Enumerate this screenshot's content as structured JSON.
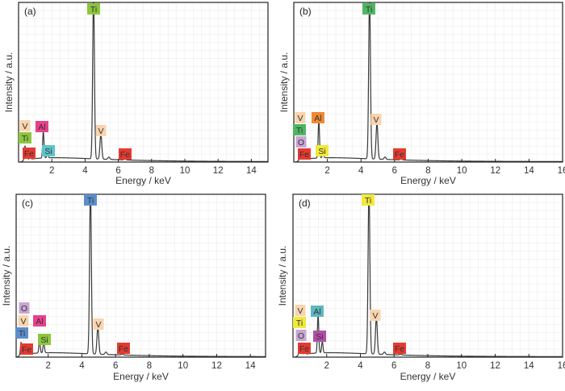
{
  "chart_data": [
    {
      "type": "line",
      "panel": "(a)",
      "xlabel": "Energy / keV",
      "ylabel": "Intensity / a.u.",
      "xlim": [
        0,
        15
      ],
      "ylim": [
        0,
        100
      ],
      "xticks": [
        "2",
        "4",
        "6",
        "8",
        "10",
        "12",
        "14"
      ],
      "grid": true,
      "peaks": [
        {
          "energy": 0.39,
          "intensity": 9
        },
        {
          "energy": 0.51,
          "intensity": 5
        },
        {
          "energy": 0.7,
          "intensity": 2
        },
        {
          "energy": 1.49,
          "intensity": 17
        },
        {
          "energy": 1.74,
          "intensity": 3
        },
        {
          "energy": 4.51,
          "intensity": 105
        },
        {
          "energy": 4.95,
          "intensity": 16
        },
        {
          "energy": 5.43,
          "intensity": 1.5
        },
        {
          "energy": 6.4,
          "intensity": 0.6
        }
      ],
      "annotations": [
        {
          "text": "Ti",
          "color": "#8cc63e"
        },
        {
          "text": "V",
          "color": "#f9d4ae"
        },
        {
          "text": "Ti",
          "color": "#8cc63e"
        },
        {
          "text": "Fe",
          "color": "#e53a30"
        },
        {
          "text": "Al",
          "color": "#e8408c"
        },
        {
          "text": "Si",
          "color": "#5cc5cb"
        },
        {
          "text": "V",
          "color": "#f9d4ae"
        },
        {
          "text": "Fe",
          "color": "#e53a30"
        }
      ]
    },
    {
      "type": "line",
      "panel": "(b)",
      "xlabel": "Energy / keV",
      "ylabel": "Intensity / a.u.",
      "xlim": [
        0,
        16
      ],
      "ylim": [
        0,
        100
      ],
      "xticks": [
        "2",
        "4",
        "6",
        "8",
        "10",
        "12",
        "14",
        "16"
      ],
      "grid": true,
      "peaks": [
        {
          "energy": 0.39,
          "intensity": 7
        },
        {
          "energy": 0.52,
          "intensity": 6
        },
        {
          "energy": 0.7,
          "intensity": 2
        },
        {
          "energy": 1.49,
          "intensity": 24
        },
        {
          "energy": 1.74,
          "intensity": 3
        },
        {
          "energy": 4.51,
          "intensity": 105
        },
        {
          "energy": 4.95,
          "intensity": 23
        },
        {
          "energy": 5.43,
          "intensity": 1.5
        },
        {
          "energy": 6.4,
          "intensity": 0.6
        }
      ],
      "annotations": [
        {
          "text": "Ti",
          "color": "#4fb563"
        },
        {
          "text": "V",
          "color": "#f9d4ae"
        },
        {
          "text": "Ti",
          "color": "#4fb563"
        },
        {
          "text": "O",
          "color": "#c9a5d3"
        },
        {
          "text": "Fe",
          "color": "#e53a30"
        },
        {
          "text": "Al",
          "color": "#f08a33"
        },
        {
          "text": "Si",
          "color": "#f1e93c"
        },
        {
          "text": "V",
          "color": "#f9d4ae"
        },
        {
          "text": "Fe",
          "color": "#e53a30"
        }
      ]
    },
    {
      "type": "line",
      "panel": "(c)",
      "xlabel": "Energy / keV",
      "ylabel": "Intensity / a.u.",
      "xlim": [
        0.1,
        14.9
      ],
      "ylim": [
        0,
        100
      ],
      "xticks": [
        "2",
        "4",
        "6",
        "8",
        "10",
        "12",
        "14"
      ],
      "grid": true,
      "peaks": [
        {
          "energy": 0.39,
          "intensity": 8
        },
        {
          "energy": 0.52,
          "intensity": 5
        },
        {
          "energy": 0.7,
          "intensity": 2
        },
        {
          "energy": 1.49,
          "intensity": 8
        },
        {
          "energy": 1.74,
          "intensity": 7
        },
        {
          "energy": 4.51,
          "intensity": 105
        },
        {
          "energy": 4.95,
          "intensity": 17
        },
        {
          "energy": 5.43,
          "intensity": 1.5
        },
        {
          "energy": 6.4,
          "intensity": 0.6
        }
      ],
      "annotations": [
        {
          "text": "Ti",
          "color": "#5b8ecb"
        },
        {
          "text": "O",
          "color": "#c9a5d3"
        },
        {
          "text": "V",
          "color": "#f9d4ae"
        },
        {
          "text": "Ti",
          "color": "#5b8ecb"
        },
        {
          "text": "Fe",
          "color": "#e53a30"
        },
        {
          "text": "Al",
          "color": "#e8408c"
        },
        {
          "text": "Si",
          "color": "#8cc63e"
        },
        {
          "text": "V",
          "color": "#f9d4ae"
        },
        {
          "text": "Fe",
          "color": "#e53a30"
        }
      ]
    },
    {
      "type": "line",
      "panel": "(d)",
      "xlabel": "Energy / keV",
      "ylabel": "Intensity / a.u.",
      "xlim": [
        0,
        16
      ],
      "ylim": [
        0,
        100
      ],
      "xticks": [
        "2",
        "4",
        "6",
        "8",
        "10",
        "12",
        "14",
        "16"
      ],
      "grid": true,
      "peaks": [
        {
          "energy": 0.39,
          "intensity": 7
        },
        {
          "energy": 0.52,
          "intensity": 6
        },
        {
          "energy": 0.7,
          "intensity": 2
        },
        {
          "energy": 1.49,
          "intensity": 24
        },
        {
          "energy": 1.74,
          "intensity": 7
        },
        {
          "energy": 4.51,
          "intensity": 105
        },
        {
          "energy": 4.95,
          "intensity": 23
        },
        {
          "energy": 5.43,
          "intensity": 1.5
        },
        {
          "energy": 6.4,
          "intensity": 0.6
        }
      ],
      "annotations": [
        {
          "text": "Ti",
          "color": "#f1e93c"
        },
        {
          "text": "V",
          "color": "#f9d4ae"
        },
        {
          "text": "Ti",
          "color": "#f1e93c"
        },
        {
          "text": "O",
          "color": "#c9a5d3"
        },
        {
          "text": "Fe",
          "color": "#e53a30"
        },
        {
          "text": "Al",
          "color": "#5cb8bf"
        },
        {
          "text": "Si",
          "color": "#b34ea7"
        },
        {
          "text": "V",
          "color": "#f9d4ae"
        },
        {
          "text": "Fe",
          "color": "#e53a30"
        }
      ]
    }
  ]
}
